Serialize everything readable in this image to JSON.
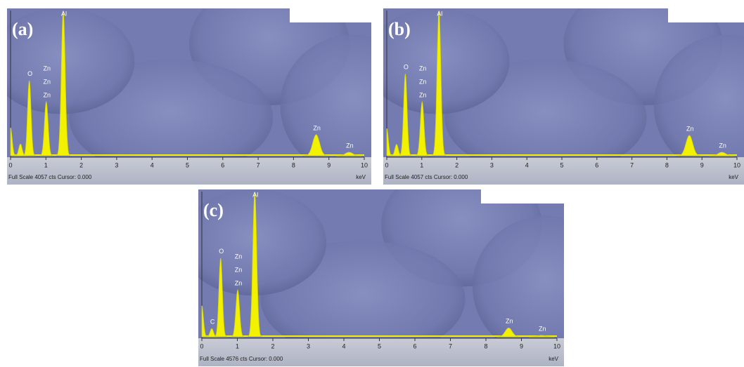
{
  "chart_data": [
    {
      "type": "spectrum",
      "panel_label": "(a)",
      "footer": "Full Scale 4057 cts Cursor: 0.000",
      "xlabel": "keV",
      "color": "#f2f200",
      "x": [
        0.0,
        0.28,
        0.53,
        1.01,
        1.49,
        8.64,
        9.57
      ],
      "values": [
        780,
        330,
        2100,
        1510,
        4057,
        590,
        100
      ],
      "annotations": [
        {
          "text": "O",
          "x": 0.53
        },
        {
          "text": "Zn",
          "x": 1.01
        },
        {
          "text": "Zn",
          "x": 1.01
        },
        {
          "text": "Zn",
          "x": 1.01
        },
        {
          "text": "Al",
          "x": 1.49
        },
        {
          "text": "Zn",
          "x": 8.64
        },
        {
          "text": "Zn",
          "x": 9.57
        }
      ],
      "xlim": [
        0,
        10
      ],
      "ylim": [
        0,
        4057
      ],
      "xticks": [
        0,
        1,
        2,
        3,
        4,
        5,
        6,
        7,
        8,
        9,
        10
      ]
    },
    {
      "type": "spectrum",
      "panel_label": "(b)",
      "footer": "Full Scale 4057 cts Cursor: 0.000",
      "xlabel": "keV",
      "color": "#f2f200",
      "x": [
        0.0,
        0.28,
        0.53,
        1.01,
        1.49,
        8.64,
        9.57
      ],
      "values": [
        760,
        320,
        2290,
        1510,
        4057,
        570,
        100
      ],
      "annotations": [
        {
          "text": "O",
          "x": 0.53
        },
        {
          "text": "Zn",
          "x": 1.01
        },
        {
          "text": "Zn",
          "x": 1.01
        },
        {
          "text": "Zn",
          "x": 1.01
        },
        {
          "text": "Al",
          "x": 1.49
        },
        {
          "text": "Zn",
          "x": 8.64
        },
        {
          "text": "Zn",
          "x": 9.57
        }
      ],
      "xlim": [
        0,
        10
      ],
      "ylim": [
        0,
        4057
      ],
      "xticks": [
        0,
        1,
        2,
        3,
        4,
        5,
        6,
        7,
        8,
        9,
        10
      ]
    },
    {
      "type": "spectrum",
      "panel_label": "(c)",
      "footer": "Full Scale 4576 cts Cursor: 0.000",
      "xlabel": "keV",
      "color": "#f2f200",
      "x": [
        0.0,
        0.28,
        0.53,
        1.01,
        1.49,
        8.64,
        9.57
      ],
      "values": [
        980,
        260,
        2480,
        1480,
        4576,
        280,
        45
      ],
      "annotations": [
        {
          "text": "C",
          "x": 0.28
        },
        {
          "text": "O",
          "x": 0.53
        },
        {
          "text": "Zn",
          "x": 1.01
        },
        {
          "text": "Zn",
          "x": 1.01
        },
        {
          "text": "Zn",
          "x": 1.01
        },
        {
          "text": "Al",
          "x": 1.49
        },
        {
          "text": "Zn",
          "x": 8.64
        },
        {
          "text": "Zn",
          "x": 9.57
        }
      ],
      "xlim": [
        0,
        10
      ],
      "ylim": [
        0,
        4576
      ],
      "xticks": [
        0,
        1,
        2,
        3,
        4,
        5,
        6,
        7,
        8,
        9,
        10
      ]
    }
  ]
}
